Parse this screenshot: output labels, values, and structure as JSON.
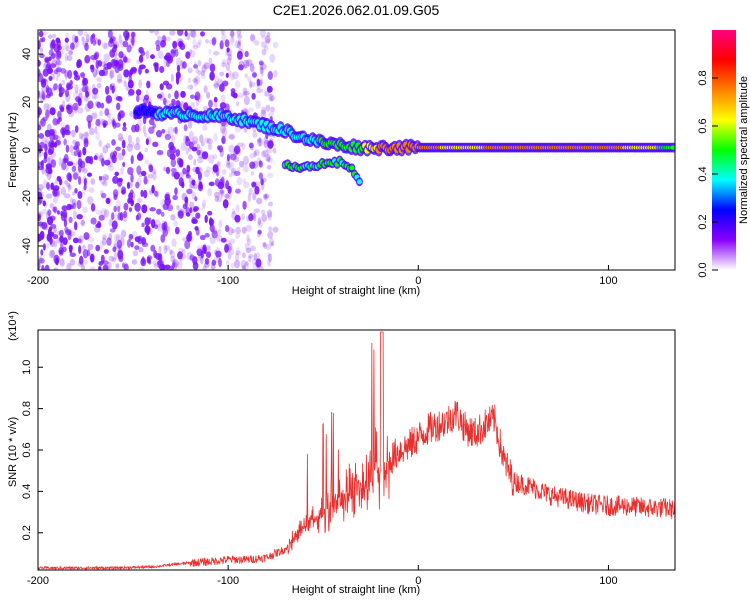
{
  "title": "C2E1.2026.062.01.09.G05",
  "chart_data": [
    {
      "type": "heatmap",
      "xlabel": "Height of straight line (km)",
      "ylabel": "Frequency (Hz)",
      "xlim": [
        -200,
        135
      ],
      "ylim": [
        -50,
        50
      ],
      "xticks": [
        -200,
        -100,
        0,
        100
      ],
      "yticks": [
        -40,
        -20,
        0,
        20,
        40
      ],
      "colorbar": {
        "label": "Normalized spectral amplitude",
        "range": [
          0,
          1
        ],
        "ticks": [
          "0.0",
          "0.2",
          "0.4",
          "0.6",
          "0.8"
        ],
        "colors": [
          "#ffffff",
          "#8a00ff",
          "#0000ff",
          "#00ffff",
          "#00ff00",
          "#ffff00",
          "#ff8000",
          "#ff0000",
          "#ff0080"
        ]
      },
      "trace": {
        "x": [
          -148,
          -140,
          -130,
          -120,
          -110,
          -100,
          -90,
          -80,
          -70,
          -60,
          -50,
          -40,
          -30,
          -20,
          -10,
          0,
          10,
          20,
          40,
          60,
          80,
          100,
          120,
          135
        ],
        "freq": [
          16,
          16,
          15,
          15,
          14,
          14,
          12,
          10,
          8,
          5,
          3,
          2,
          1,
          1,
          1,
          1,
          1,
          1,
          1,
          1,
          1,
          1,
          1,
          1
        ],
        "amplitude": [
          0.3,
          0.3,
          0.35,
          0.35,
          0.35,
          0.4,
          0.4,
          0.4,
          0.4,
          0.4,
          0.45,
          0.45,
          0.55,
          0.7,
          0.75,
          0.8,
          0.7,
          0.65,
          0.7,
          0.8,
          0.8,
          0.75,
          0.6,
          0.5
        ]
      },
      "lower_branch": {
        "x": [
          -70,
          -60,
          -50,
          -40,
          -35,
          -30
        ],
        "freq": [
          -6,
          -7,
          -6,
          -5,
          -8,
          -14
        ]
      }
    },
    {
      "type": "line",
      "xlabel": "Height of straight line (km)",
      "ylabel": "SNR (10 * v/v)",
      "y_multiplier": "(x10⁴)",
      "xlim": [
        -200,
        135
      ],
      "ylim": [
        0.02,
        1.18
      ],
      "xticks": [
        -200,
        -100,
        0,
        100
      ],
      "yticks": [
        0.2,
        0.4,
        0.6,
        0.8,
        1.0
      ],
      "color": "#e8312f",
      "series": [
        {
          "x": [
            -200,
            -180,
            -160,
            -140,
            -130,
            -120,
            -110,
            -100,
            -90,
            -80,
            -70,
            -65,
            -60,
            -55,
            -50,
            -45,
            -40,
            -35,
            -30,
            -25,
            -22,
            -20,
            -18,
            -15,
            -10,
            -5,
            0,
            5,
            10,
            15,
            20,
            25,
            30,
            35,
            40,
            45,
            50,
            60,
            70,
            80,
            90,
            100,
            110,
            120,
            130,
            135
          ],
          "values": [
            0.03,
            0.03,
            0.03,
            0.035,
            0.045,
            0.055,
            0.06,
            0.07,
            0.07,
            0.08,
            0.12,
            0.18,
            0.22,
            0.26,
            0.3,
            0.32,
            0.36,
            0.42,
            0.4,
            0.45,
            0.55,
            0.38,
            0.45,
            0.55,
            0.6,
            0.62,
            0.66,
            0.7,
            0.72,
            0.74,
            0.78,
            0.7,
            0.68,
            0.72,
            0.75,
            0.55,
            0.45,
            0.42,
            0.38,
            0.36,
            0.34,
            0.33,
            0.33,
            0.32,
            0.32,
            0.31
          ]
        }
      ]
    }
  ]
}
